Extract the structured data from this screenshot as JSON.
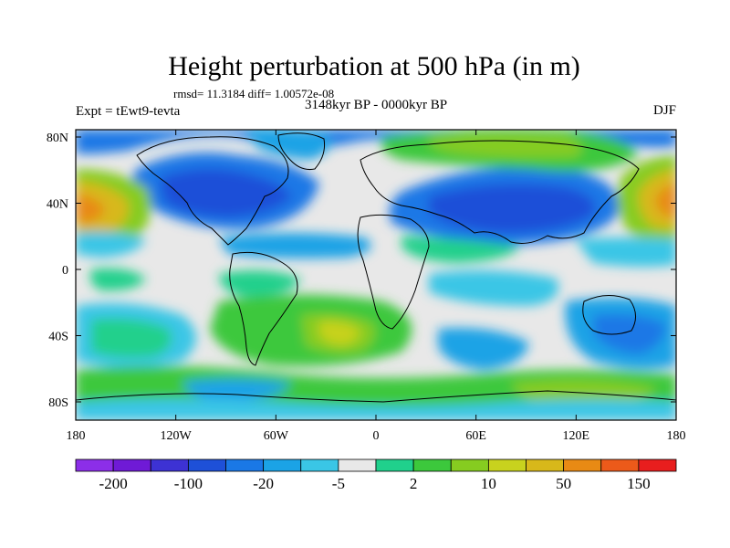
{
  "title": "Height perturbation at 500 hPa (in m)",
  "stats": "rmsd= 11.3184 diff= 1.00572e-08",
  "period": "3148kyr BP - 0000kyr BP",
  "experiment": "Expt = tEwt9-tevta",
  "season": "DJF",
  "lat_ticks": [
    "80N",
    "40N",
    "0",
    "40S",
    "80S"
  ],
  "lon_ticks": [
    "180",
    "120W",
    "60W",
    "0",
    "60E",
    "120E",
    "180"
  ],
  "colorbar": {
    "colors": [
      "#8c2ee8",
      "#6f1ad6",
      "#3d32d4",
      "#1e50d8",
      "#1a78e6",
      "#1ba3e6",
      "#3ac6e6",
      "#e8e8e8",
      "#20d08c",
      "#3cc83c",
      "#86cc20",
      "#c8d21e",
      "#d8b81a",
      "#e88a14",
      "#ec5a1a",
      "#e81e1e"
    ],
    "labels": [
      "-200",
      "-100",
      "-20",
      "-5",
      "2",
      "10",
      "50",
      "150"
    ]
  }
}
